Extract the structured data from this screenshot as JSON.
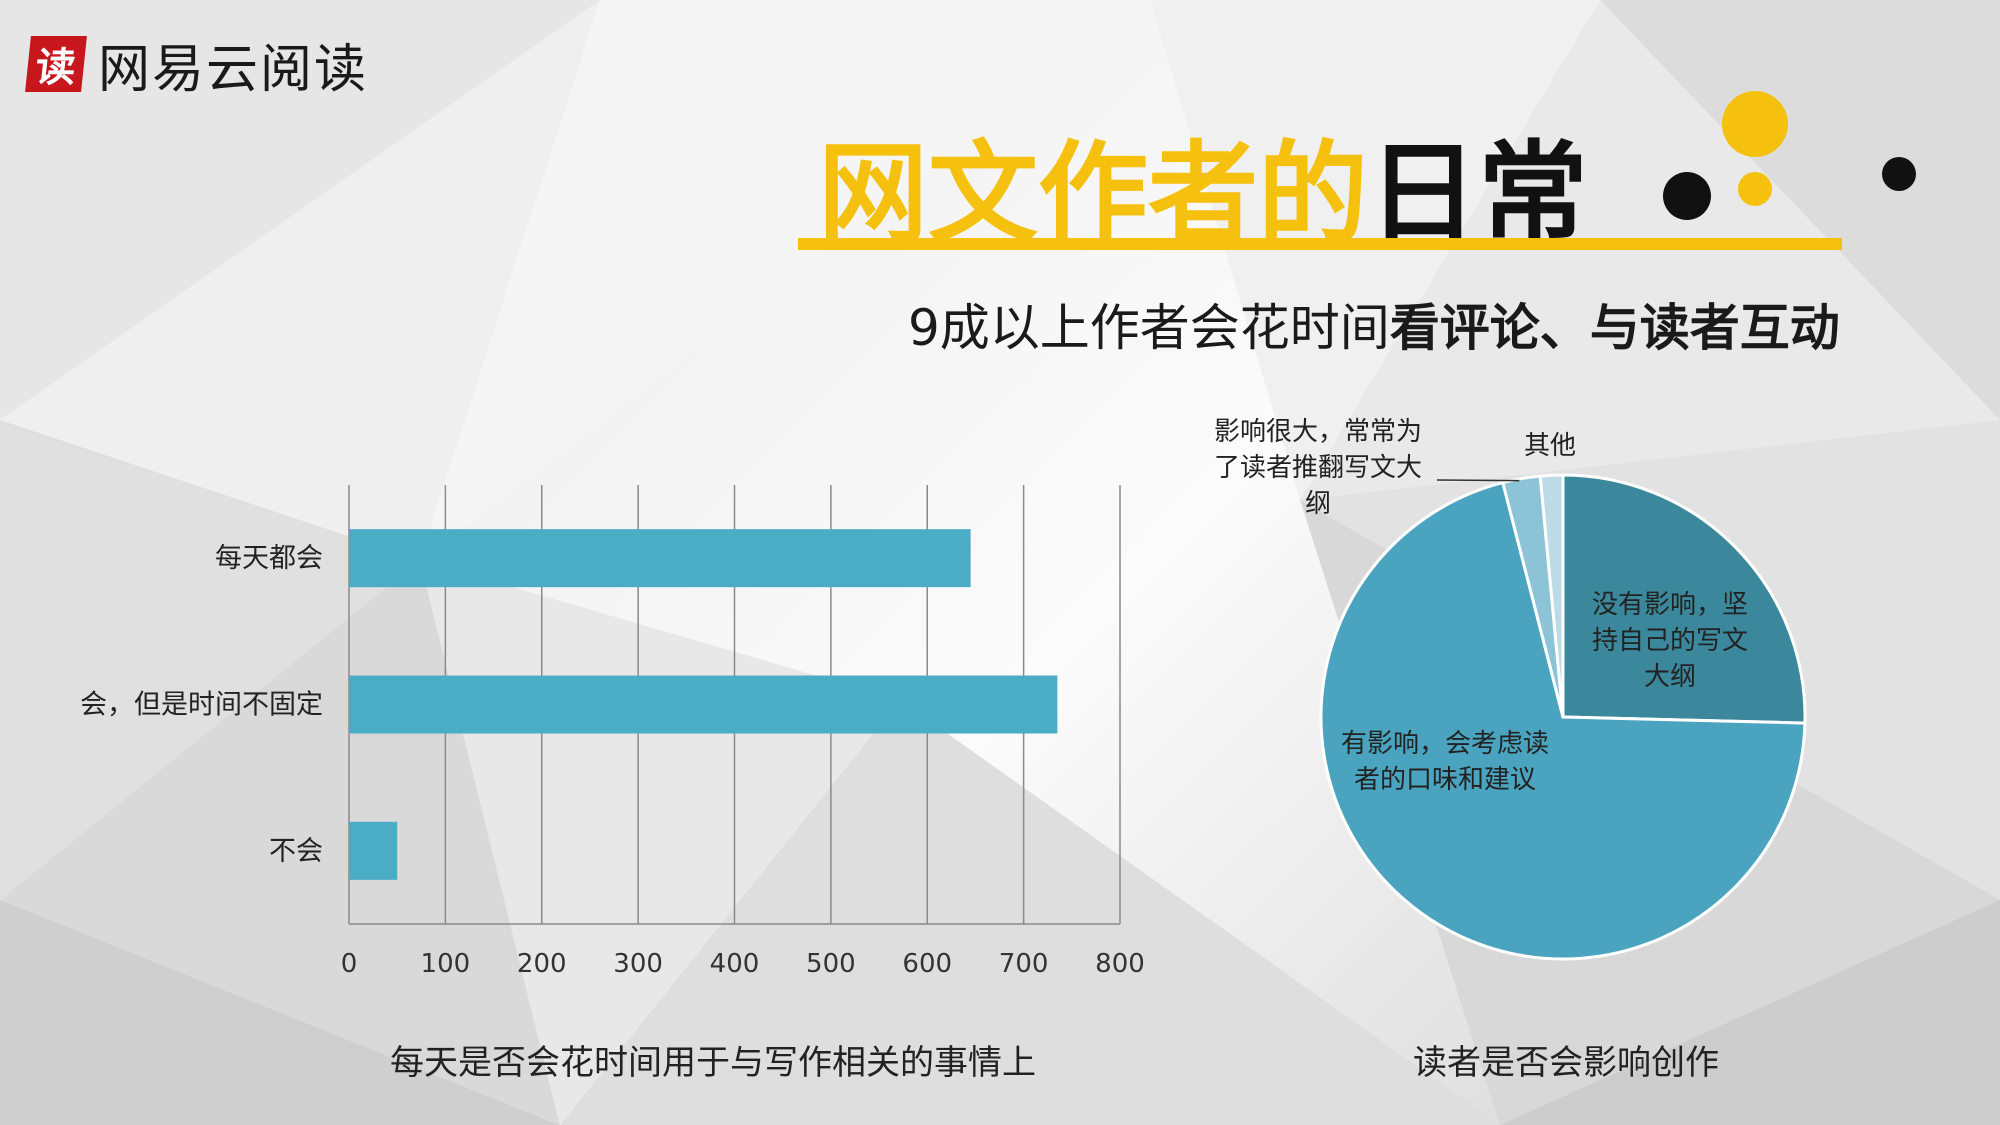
{
  "header": {
    "logo_badge": "读",
    "logo_text": "网易云阅读",
    "title_highlight": "网文作者的",
    "title_rest": "日常",
    "subtitle_normal": "9成以上作者会花时间",
    "subtitle_bold": "看评论、与读者互动"
  },
  "colors": {
    "accent": "#f5c10e",
    "bar": "#4bacc6",
    "pie_large": "#4aa4bf",
    "pie_dark": "#3b889c",
    "pie_light": "#8cc3d6",
    "pie_lighter": "#bcdbe6"
  },
  "chart_data": [
    {
      "type": "bar",
      "orientation": "horizontal",
      "title": "每天是否会花时间用于与写作相关的事情上",
      "categories": [
        "每天都会",
        "会，但是时间不固定",
        "不会"
      ],
      "values": [
        645,
        735,
        50
      ],
      "xlim": [
        0,
        800
      ],
      "xticks": [
        "0",
        "100",
        "200",
        "300",
        "400",
        "500",
        "600",
        "700",
        "800"
      ],
      "grid": true
    },
    {
      "type": "pie",
      "title": "读者是否会影响创作",
      "slices": [
        {
          "label": "没有影响，坚持自己的写文大纲",
          "lines": [
            "没有影响，坚",
            "持自己的写文",
            "大纲"
          ],
          "value": 25.4
        },
        {
          "label": "有影响，会考虑读者的口味和建议",
          "lines": [
            "有影响，会考虑读",
            "者的口味和建议"
          ],
          "value": 70.6
        },
        {
          "label": "影响很大，常常为了读者推翻写文大纲",
          "lines": [
            "影响很大，常常为",
            "了读者推翻写文大",
            "纲"
          ],
          "value": 2.5
        },
        {
          "label": "其他",
          "lines": [
            "其他"
          ],
          "value": 1.5
        }
      ]
    }
  ]
}
